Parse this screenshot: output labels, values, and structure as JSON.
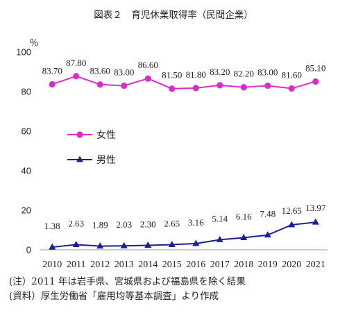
{
  "chart_data": {
    "type": "line",
    "title": "図表２　育児休業取得率（民間企業）",
    "ylabel": "％",
    "ylim": [
      0,
      100
    ],
    "yticks": [
      "0",
      "20",
      "40",
      "60",
      "80",
      "100"
    ],
    "categories": [
      "2010",
      "2011",
      "2012",
      "2013",
      "2014",
      "2015",
      "2016",
      "2017",
      "2018",
      "2019",
      "2020",
      "2021"
    ],
    "series": [
      {
        "name": "女性",
        "values": [
          83.7,
          87.8,
          83.6,
          83.0,
          86.6,
          81.5,
          81.8,
          83.2,
          82.2,
          83.0,
          81.6,
          85.1
        ],
        "labels": [
          "83.70",
          "87.80",
          "83.60",
          "83.00",
          "86.60",
          "81.50",
          "81.80",
          "83.20",
          "82.20",
          "83.00",
          "81.60",
          "85.10"
        ],
        "color": "#d62fc6",
        "marker": "circle"
      },
      {
        "name": "男性",
        "values": [
          1.38,
          2.63,
          1.89,
          2.03,
          2.3,
          2.65,
          3.16,
          5.14,
          6.16,
          7.48,
          12.65,
          13.97
        ],
        "labels": [
          "1.38",
          "2.63",
          "1.89",
          "2.03",
          "2.30",
          "2.65",
          "3.16",
          "5.14",
          "6.16",
          "7.48",
          "12.65",
          "13.97"
        ],
        "color": "#1c1f8f",
        "marker": "triangle"
      }
    ],
    "legend_position": "center-left",
    "grid": false
  },
  "notes": [
    "(注）2011 年は岩手県、宮城県および福島県を除く結果",
    "(資料）厚生労働省「雇用均等基本調査」より作成"
  ]
}
